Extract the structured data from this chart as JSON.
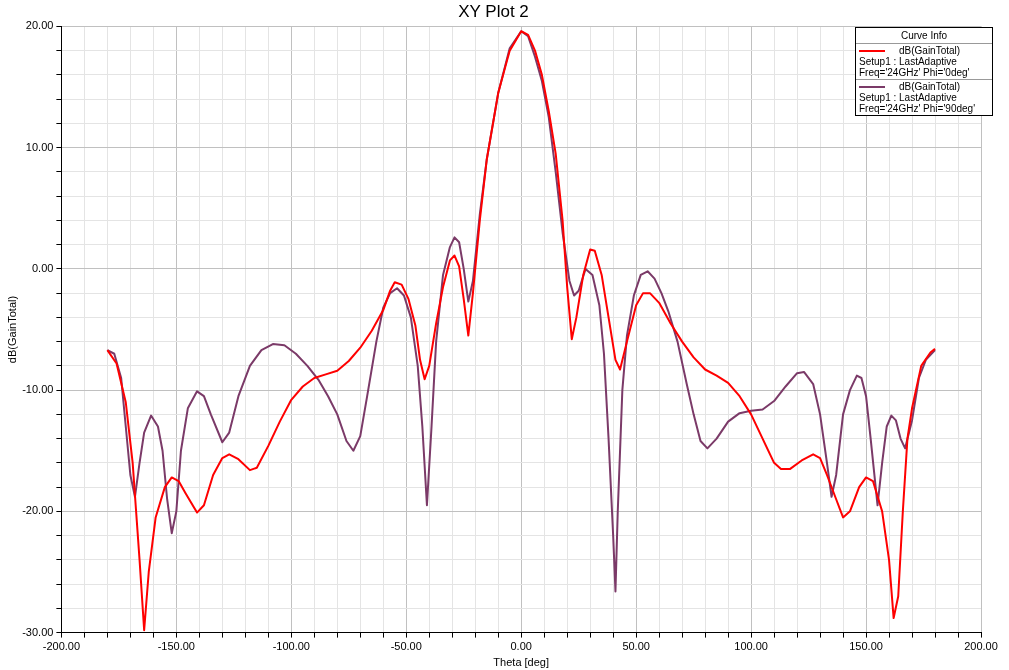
{
  "chart_data": {
    "type": "line",
    "title": "XY Plot 2",
    "xlabel": "Theta [deg]",
    "ylabel": "dB(GainTotal)",
    "legend_title": "Curve Info",
    "legend": "top right",
    "grid": true,
    "marker": "none",
    "line_style": "solid",
    "xlim": [
      -200,
      200
    ],
    "xticks": [
      {
        "value": -200,
        "label": "-200.00"
      },
      {
        "value": -190,
        "label": null
      },
      {
        "value": -180,
        "label": null
      },
      {
        "value": -170,
        "label": null
      },
      {
        "value": -160,
        "label": null
      },
      {
        "value": -150,
        "label": "-150.00"
      },
      {
        "value": -140,
        "label": null
      },
      {
        "value": -130,
        "label": null
      },
      {
        "value": -120,
        "label": null
      },
      {
        "value": -110,
        "label": null
      },
      {
        "value": -100,
        "label": "-100.00"
      },
      {
        "value": -90,
        "label": null
      },
      {
        "value": -80,
        "label": null
      },
      {
        "value": -70,
        "label": null
      },
      {
        "value": -60,
        "label": null
      },
      {
        "value": -50,
        "label": "-50.00"
      },
      {
        "value": -40,
        "label": null
      },
      {
        "value": -30,
        "label": null
      },
      {
        "value": -20,
        "label": null
      },
      {
        "value": -10,
        "label": null
      },
      {
        "value": 0,
        "label": "0.00"
      },
      {
        "value": 10,
        "label": null
      },
      {
        "value": 20,
        "label": null
      },
      {
        "value": 30,
        "label": null
      },
      {
        "value": 40,
        "label": null
      },
      {
        "value": 50,
        "label": "50.00"
      },
      {
        "value": 60,
        "label": null
      },
      {
        "value": 70,
        "label": null
      },
      {
        "value": 80,
        "label": null
      },
      {
        "value": 90,
        "label": null
      },
      {
        "value": 100,
        "label": "100.00"
      },
      {
        "value": 110,
        "label": null
      },
      {
        "value": 120,
        "label": null
      },
      {
        "value": 130,
        "label": null
      },
      {
        "value": 140,
        "label": null
      },
      {
        "value": 150,
        "label": "150.00"
      },
      {
        "value": 160,
        "label": null
      },
      {
        "value": 170,
        "label": null
      },
      {
        "value": 180,
        "label": null
      },
      {
        "value": 190,
        "label": null
      },
      {
        "value": 200,
        "label": "200.00"
      }
    ],
    "ylim": [
      -30,
      20
    ],
    "yticks": [
      {
        "value": -30,
        "label": "-30.00"
      },
      {
        "value": -28,
        "label": null
      },
      {
        "value": -26,
        "label": null
      },
      {
        "value": -24,
        "label": null
      },
      {
        "value": -22,
        "label": null
      },
      {
        "value": -20,
        "label": "-20.00"
      },
      {
        "value": -18,
        "label": null
      },
      {
        "value": -16,
        "label": null
      },
      {
        "value": -14,
        "label": null
      },
      {
        "value": -12,
        "label": null
      },
      {
        "value": -10,
        "label": "-10.00"
      },
      {
        "value": -8,
        "label": null
      },
      {
        "value": -6,
        "label": null
      },
      {
        "value": -4,
        "label": null
      },
      {
        "value": -2,
        "label": null
      },
      {
        "value": 0,
        "label": "0.00"
      },
      {
        "value": 2,
        "label": null
      },
      {
        "value": 4,
        "label": null
      },
      {
        "value": 6,
        "label": null
      },
      {
        "value": 8,
        "label": null
      },
      {
        "value": 10,
        "label": "10.00"
      },
      {
        "value": 12,
        "label": null
      },
      {
        "value": 14,
        "label": null
      },
      {
        "value": 16,
        "label": null
      },
      {
        "value": 18,
        "label": null
      },
      {
        "value": 20,
        "label": "20.00"
      }
    ],
    "series": [
      {
        "name": "dB(GainTotal)\nSetup1 : LastAdaptive\nFreq='24GHz' Phi='0deg'",
        "color": "#ff0000",
        "x": [
          -180,
          -176,
          -172,
          -169,
          -166,
          -164,
          -162,
          -159,
          -155,
          -152,
          -149,
          -146,
          -141,
          -138,
          -134,
          -130,
          -127,
          -123,
          -118,
          -115,
          -110,
          -105,
          -100,
          -95,
          -90,
          -85,
          -80,
          -75,
          -70,
          -65,
          -60,
          -57,
          -55,
          -52,
          -49,
          -46,
          -44,
          -42,
          -40,
          -37,
          -34,
          -31,
          -29,
          -27,
          -25,
          -23,
          -21,
          -18,
          -15,
          -10,
          -5,
          0,
          3,
          6,
          9,
          12,
          15,
          18,
          20,
          22,
          24,
          27,
          30,
          32,
          35,
          38,
          41,
          43,
          46,
          50,
          53,
          56,
          60,
          65,
          70,
          75,
          80,
          85,
          90,
          95,
          100,
          105,
          110,
          113,
          117,
          122,
          127,
          130,
          133,
          137,
          140,
          143,
          147,
          150,
          153,
          157,
          160,
          162,
          164,
          166,
          168,
          170,
          174,
          178,
          180
        ],
        "values": [
          -6.7,
          -7.8,
          -11,
          -16,
          -24,
          -29.8,
          -25,
          -20.5,
          -18,
          -17.2,
          -17.5,
          -18.5,
          -20.1,
          -19.5,
          -17,
          -15.6,
          -15.3,
          -15.7,
          -16.6,
          -16.4,
          -14.6,
          -12.6,
          -10.8,
          -9.7,
          -9,
          -8.7,
          -8.4,
          -7.6,
          -6.5,
          -5.1,
          -3.4,
          -1.8,
          -1.1,
          -1.3,
          -2.5,
          -4.7,
          -7.5,
          -9.1,
          -8,
          -4.5,
          -1.5,
          0.7,
          1.1,
          0.2,
          -2.5,
          -5.5,
          -2,
          4,
          9,
          14.5,
          18,
          19.6,
          19.3,
          18,
          16,
          13,
          9.5,
          4,
          -1.5,
          -5.8,
          -4,
          -0.5,
          1.6,
          1.5,
          -0.5,
          -4,
          -7.5,
          -8.3,
          -6,
          -3,
          -2,
          -2,
          -2.8,
          -4.5,
          -6,
          -7.3,
          -8.3,
          -8.8,
          -9.4,
          -10.5,
          -12,
          -14,
          -16,
          -16.5,
          -16.5,
          -15.8,
          -15.3,
          -15.6,
          -17,
          -19,
          -20.5,
          -20,
          -18,
          -17.2,
          -17.5,
          -20,
          -24,
          -28.8,
          -27,
          -20,
          -14,
          -11.5,
          -8,
          -6.9,
          -6.6
        ]
      },
      {
        "name": "dB(GainTotal)\nSetup1 : LastAdaptive\nFreq='24GHz' Phi='90deg'",
        "color": "#7b3a68",
        "x": [
          -180,
          -177,
          -174,
          -172,
          -170,
          -168,
          -166,
          -164,
          -161,
          -158,
          -156,
          -154,
          -152,
          -150,
          -148,
          -145,
          -141,
          -138,
          -135,
          -130,
          -127,
          -123,
          -118,
          -113,
          -108,
          -103,
          -98,
          -93,
          -88,
          -84,
          -80,
          -76,
          -73,
          -70,
          -67,
          -63,
          -60,
          -57,
          -54,
          -51,
          -48,
          -45,
          -43,
          -41,
          -39,
          -37,
          -34,
          -31,
          -29,
          -27,
          -25,
          -23,
          -21,
          -18,
          -15,
          -10,
          -5,
          0,
          3,
          6,
          9,
          12,
          15,
          18,
          21,
          23,
          25,
          28,
          31,
          34,
          36,
          38,
          40,
          41,
          42,
          44,
          46,
          49,
          52,
          55,
          58,
          61,
          64,
          68,
          72,
          75,
          78,
          81,
          85,
          90,
          95,
          100,
          105,
          110,
          115,
          120,
          123,
          127,
          130,
          133,
          135,
          137,
          140,
          143,
          146,
          148,
          150,
          152,
          155,
          157,
          159,
          161,
          163,
          165,
          167,
          170,
          173,
          176,
          180
        ],
        "values": [
          -6.7,
          -7,
          -9,
          -13,
          -17,
          -18.8,
          -16,
          -13.5,
          -12.1,
          -13,
          -15,
          -19,
          -21.8,
          -20,
          -15,
          -11.5,
          -10.1,
          -10.5,
          -12,
          -14.3,
          -13.5,
          -10.5,
          -8,
          -6.7,
          -6.2,
          -6.3,
          -7,
          -8,
          -9.2,
          -10.5,
          -12,
          -14.2,
          -15,
          -13.8,
          -10.5,
          -6,
          -3.2,
          -2,
          -1.6,
          -2.2,
          -4,
          -8,
          -13,
          -19.5,
          -13,
          -6,
          -0.5,
          1.8,
          2.6,
          2.2,
          0,
          -2.7,
          -1,
          4.5,
          9,
          14.5,
          18.2,
          19.6,
          19.2,
          17.5,
          15.5,
          12.5,
          8,
          3,
          -1,
          -2.2,
          -1.8,
          0,
          -0.5,
          -3,
          -7,
          -14,
          -22,
          -26.6,
          -20,
          -10,
          -5.5,
          -2.2,
          -0.5,
          -0.2,
          -0.8,
          -2,
          -3.5,
          -6,
          -9.5,
          -12,
          -14.2,
          -14.8,
          -14,
          -12.6,
          -11.9,
          -11.7,
          -11.6,
          -10.9,
          -9.7,
          -8.6,
          -8.5,
          -9.5,
          -12,
          -16,
          -18.8,
          -17,
          -12,
          -10,
          -8.8,
          -9,
          -10.5,
          -14,
          -19.5,
          -16,
          -13,
          -12.1,
          -12.5,
          -14,
          -14.8,
          -12.5,
          -9,
          -7.5,
          -6.7
        ]
      }
    ]
  }
}
